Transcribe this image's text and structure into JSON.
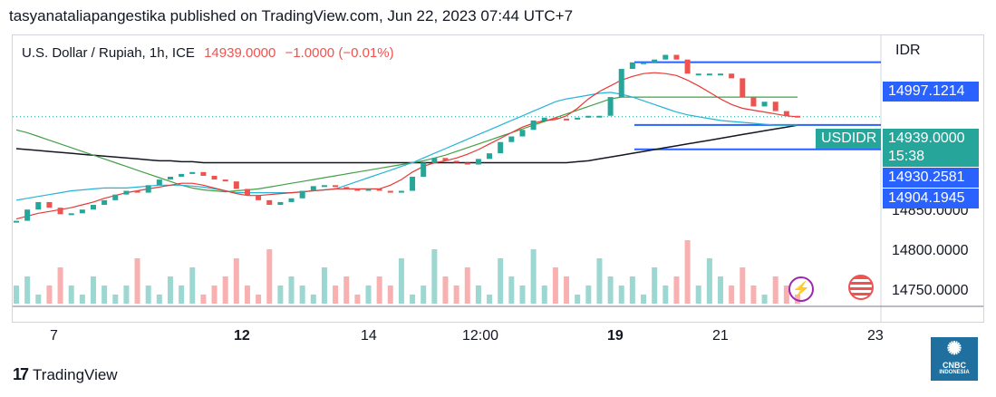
{
  "header": {
    "publisher": "tasyanataliapangestika published on TradingView.com, Jun 22, 2023 07:44 UTC+7"
  },
  "legend": {
    "symbol": "U.S. Dollar / Rupiah, 1h, ICE",
    "price": "14939.0000",
    "change": "−1.0000 (−0.01%)"
  },
  "footer": {
    "brand": "TradingView",
    "logo_glyph": "17"
  },
  "watermark": {
    "label": "CNBC",
    "sub": "INDONESIA"
  },
  "icons": {
    "lightning": "lightning-icon",
    "flag": "us-flag-icon"
  },
  "colors": {
    "up": "#26a69a",
    "down": "#ef5350",
    "blue_line": "#2962ff",
    "ema_red": "#e53935",
    "ema_cyan": "#26b4d6",
    "ema_green": "#43a047",
    "ema_black": "#131722"
  },
  "chart_data": {
    "type": "line",
    "title": "U.S. Dollar / Rupiah, 1h, ICE",
    "price_axis": {
      "unit": "IDR",
      "ticks": [
        "14850.0000",
        "14800.0000",
        "14750.0000"
      ],
      "ylim": [
        14730,
        15020
      ]
    },
    "price_tags": [
      {
        "label": "14997.1214",
        "value": 14997.1214,
        "kind": "level"
      },
      {
        "label": "14939.0000",
        "value": 14939.0,
        "kind": "last",
        "symbol": "USDIDR",
        "countdown": "15:38"
      },
      {
        "label": "14930.2581",
        "value": 14930.2581,
        "kind": "level"
      },
      {
        "label": "14904.1945",
        "value": 14904.1945,
        "kind": "level"
      }
    ],
    "x_axis": {
      "ticks": [
        "7",
        "12",
        "14",
        "12:00",
        "19",
        "21",
        "23"
      ],
      "bold": [
        "12",
        "19"
      ]
    },
    "price_close": [
      14828,
      14840,
      14848,
      14842,
      14835,
      14836,
      14840,
      14845,
      14850,
      14856,
      14860,
      14858,
      14866,
      14872,
      14875,
      14878,
      14880,
      14876,
      14872,
      14870,
      14862,
      14855,
      14850,
      14845,
      14848,
      14852,
      14860,
      14865,
      14866,
      14864,
      14862,
      14860,
      14862,
      14860,
      14858,
      14860,
      14875,
      14890,
      14895,
      14892,
      14890,
      14888,
      14894,
      14900,
      14912,
      14918,
      14925,
      14935,
      14938,
      14937,
      14936,
      14938,
      14940,
      14940,
      14960,
      14990,
      14997,
      14997,
      15000,
      15005,
      15000,
      14985,
      14985,
      14985,
      14985,
      14980,
      14960,
      14950,
      14955,
      14945,
      14940,
      14939
    ],
    "ema_fast": [
      14830,
      14833,
      14836,
      14838,
      14840,
      14842,
      14845,
      14848,
      14852,
      14855,
      14858,
      14860,
      14862,
      14864,
      14866,
      14868,
      14868,
      14866,
      14863,
      14860,
      14857,
      14855,
      14855,
      14856,
      14857,
      14858,
      14859,
      14860,
      14861,
      14862,
      14862,
      14862,
      14862,
      14862,
      14866,
      14872,
      14880,
      14886,
      14890,
      14892,
      14895,
      14899,
      14904,
      14910,
      14916,
      14922,
      14928,
      14932,
      14935,
      14936,
      14940,
      14948,
      14958,
      14966,
      14972,
      14978,
      14982,
      14985,
      14986,
      14985,
      14983,
      14978,
      14972,
      14965,
      14958,
      14952,
      14948,
      14946,
      14944,
      14942,
      14940,
      14939
    ],
    "ema_mid": [
      14850,
      14852,
      14854,
      14856,
      14858,
      14860,
      14861,
      14862,
      14863,
      14863,
      14863,
      14864,
      14865,
      14866,
      14866,
      14866,
      14865,
      14864,
      14862,
      14860,
      14858,
      14858,
      14858,
      14858,
      14858,
      14858,
      14859,
      14860,
      14861,
      14862,
      14866,
      14870,
      14874,
      14878,
      14882,
      14886,
      14890,
      14895,
      14900,
      14905,
      14910,
      14915,
      14920,
      14925,
      14930,
      14935,
      14940,
      14945,
      14950,
      14955,
      14958,
      14960,
      14962,
      14964,
      14965,
      14963,
      14960,
      14956,
      14952,
      14948,
      14944,
      14941,
      14939,
      14937,
      14935,
      14934,
      14933,
      14932,
      14931,
      14930,
      14930,
      14930
    ],
    "ema_slow": [
      14925,
      14922,
      14918,
      14914,
      14910,
      14906,
      14902,
      14898,
      14894,
      14890,
      14886,
      14882,
      14878,
      14874,
      14870,
      14866,
      14863,
      14861,
      14860,
      14859,
      14860,
      14861,
      14862,
      14864,
      14866,
      14868,
      14870,
      14872,
      14874,
      14876,
      14878,
      14880,
      14882,
      14884,
      14886,
      14888,
      14890,
      14892,
      14895,
      14898,
      14902,
      14906,
      14910,
      14914,
      14918,
      14922,
      14926,
      14930,
      14934,
      14938,
      14942,
      14946,
      14950,
      14954,
      14958,
      14960,
      14960,
      14960,
      14960,
      14960,
      14960,
      14960,
      14960,
      14960,
      14960,
      14960,
      14960,
      14960,
      14960,
      14960,
      14960,
      14960
    ],
    "ema_black": [
      14905,
      14904,
      14903,
      14902,
      14901,
      14900,
      14899,
      14898,
      14897,
      14896,
      14895,
      14894,
      14893,
      14892,
      14892,
      14891,
      14891,
      14890,
      14890,
      14890,
      14890,
      14890,
      14890,
      14890,
      14890,
      14890,
      14890,
      14890,
      14890,
      14890,
      14890,
      14890,
      14890,
      14890,
      14890,
      14890,
      14890,
      14890,
      14890,
      14890,
      14890,
      14890,
      14890,
      14890,
      14890,
      14890,
      14890,
      14890,
      14890,
      14890,
      14890,
      14891,
      14892,
      14894,
      14896,
      14898,
      14900,
      14902,
      14904,
      14906,
      14908,
      14910,
      14912,
      14914,
      14916,
      14918,
      14920,
      14922,
      14924,
      14926,
      14928,
      14930
    ],
    "volume": [
      2,
      3,
      1,
      2,
      4,
      2,
      1,
      3,
      2,
      1,
      2,
      5,
      2,
      1,
      3,
      2,
      4,
      1,
      2,
      3,
      5,
      2,
      1,
      6,
      2,
      3,
      2,
      1,
      4,
      2,
      3,
      1,
      2,
      3,
      2,
      5,
      1,
      2,
      6,
      3,
      2,
      4,
      2,
      1,
      5,
      3,
      2,
      6,
      2,
      4,
      3,
      1,
      2,
      5,
      3,
      2,
      3,
      1,
      4,
      2,
      3,
      7,
      2,
      5,
      3,
      2,
      4,
      2,
      1,
      3,
      2,
      1
    ]
  }
}
